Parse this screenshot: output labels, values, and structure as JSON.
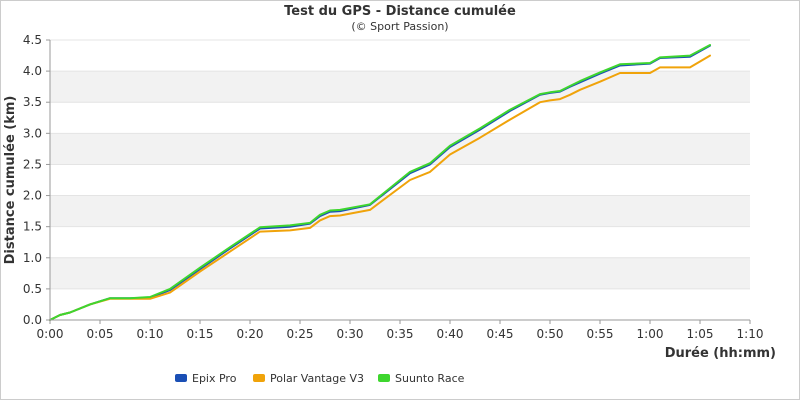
{
  "chart_data": {
    "type": "line",
    "title": "Test du GPS - Distance cumulée",
    "subtitle": "(© Sport Passion)",
    "xlabel": "Durée (hh:mm)",
    "ylabel": "Distance cumulée (km)",
    "xlim": [
      "0:00",
      "1:10"
    ],
    "ylim": [
      0,
      4.5
    ],
    "x_ticks": [
      "0:00",
      "0:05",
      "0:10",
      "0:15",
      "0:20",
      "0:25",
      "0:30",
      "0:35",
      "0:40",
      "0:45",
      "0:50",
      "0:55",
      "1:00",
      "1:05",
      "1:10"
    ],
    "y_ticks": [
      "0.0",
      "0.5",
      "1.0",
      "1.5",
      "2.0",
      "2.5",
      "3.0",
      "3.5",
      "4.0",
      "4.5"
    ],
    "grid": "horizontal alternating bands",
    "legend_position": "bottom-left",
    "series": [
      {
        "name": "Epix Pro",
        "color": "#1a4fb5",
        "x": [
          "0:00",
          "0:01",
          "0:02",
          "0:04",
          "0:06",
          "0:08",
          "0:10",
          "0:12",
          "0:15",
          "0:18",
          "0:21",
          "0:24",
          "0:26",
          "0:27",
          "0:28",
          "0:29",
          "0:32",
          "0:36",
          "0:38",
          "0:40",
          "0:43",
          "0:46",
          "0:49",
          "0:50",
          "0:51",
          "0:52",
          "0:53",
          "0:55",
          "0:57",
          "1:00",
          "1:01",
          "1:04",
          "1:06"
        ],
        "y": [
          0.0,
          0.08,
          0.12,
          0.25,
          0.35,
          0.35,
          0.36,
          0.48,
          0.82,
          1.15,
          1.47,
          1.5,
          1.55,
          1.67,
          1.74,
          1.75,
          1.85,
          2.36,
          2.5,
          2.78,
          3.06,
          3.36,
          3.62,
          3.65,
          3.67,
          3.75,
          3.82,
          3.96,
          4.09,
          4.12,
          4.21,
          4.23,
          4.41
        ]
      },
      {
        "name": "Polar Vantage V3",
        "color": "#f0a30a",
        "x": [
          "0:00",
          "0:01",
          "0:02",
          "0:04",
          "0:06",
          "0:08",
          "0:10",
          "0:12",
          "0:15",
          "0:18",
          "0:21",
          "0:24",
          "0:26",
          "0:27",
          "0:28",
          "0:29",
          "0:32",
          "0:36",
          "0:38",
          "0:40",
          "0:43",
          "0:46",
          "0:49",
          "0:50",
          "0:51",
          "0:52",
          "0:53",
          "0:55",
          "0:57",
          "1:00",
          "1:01",
          "1:04",
          "1:06"
        ],
        "y": [
          0.0,
          0.08,
          0.12,
          0.25,
          0.34,
          0.34,
          0.34,
          0.44,
          0.78,
          1.1,
          1.42,
          1.44,
          1.48,
          1.6,
          1.67,
          1.68,
          1.77,
          2.25,
          2.38,
          2.66,
          2.93,
          3.22,
          3.5,
          3.53,
          3.55,
          3.62,
          3.7,
          3.83,
          3.97,
          3.97,
          4.06,
          4.06,
          4.25
        ]
      },
      {
        "name": "Suunto Race",
        "color": "#3ed62e",
        "x": [
          "0:00",
          "0:01",
          "0:02",
          "0:04",
          "0:06",
          "0:08",
          "0:10",
          "0:12",
          "0:15",
          "0:18",
          "0:21",
          "0:24",
          "0:26",
          "0:27",
          "0:28",
          "0:29",
          "0:32",
          "0:36",
          "0:38",
          "0:40",
          "0:43",
          "0:46",
          "0:49",
          "0:50",
          "0:51",
          "0:52",
          "0:53",
          "0:55",
          "0:57",
          "1:00",
          "1:01",
          "1:04",
          "1:06"
        ],
        "y": [
          0.0,
          0.08,
          0.12,
          0.25,
          0.35,
          0.35,
          0.37,
          0.5,
          0.84,
          1.17,
          1.49,
          1.52,
          1.56,
          1.69,
          1.76,
          1.77,
          1.86,
          2.38,
          2.52,
          2.8,
          3.08,
          3.38,
          3.63,
          3.66,
          3.68,
          3.76,
          3.84,
          3.98,
          4.11,
          4.13,
          4.22,
          4.25,
          4.42
        ]
      }
    ]
  }
}
